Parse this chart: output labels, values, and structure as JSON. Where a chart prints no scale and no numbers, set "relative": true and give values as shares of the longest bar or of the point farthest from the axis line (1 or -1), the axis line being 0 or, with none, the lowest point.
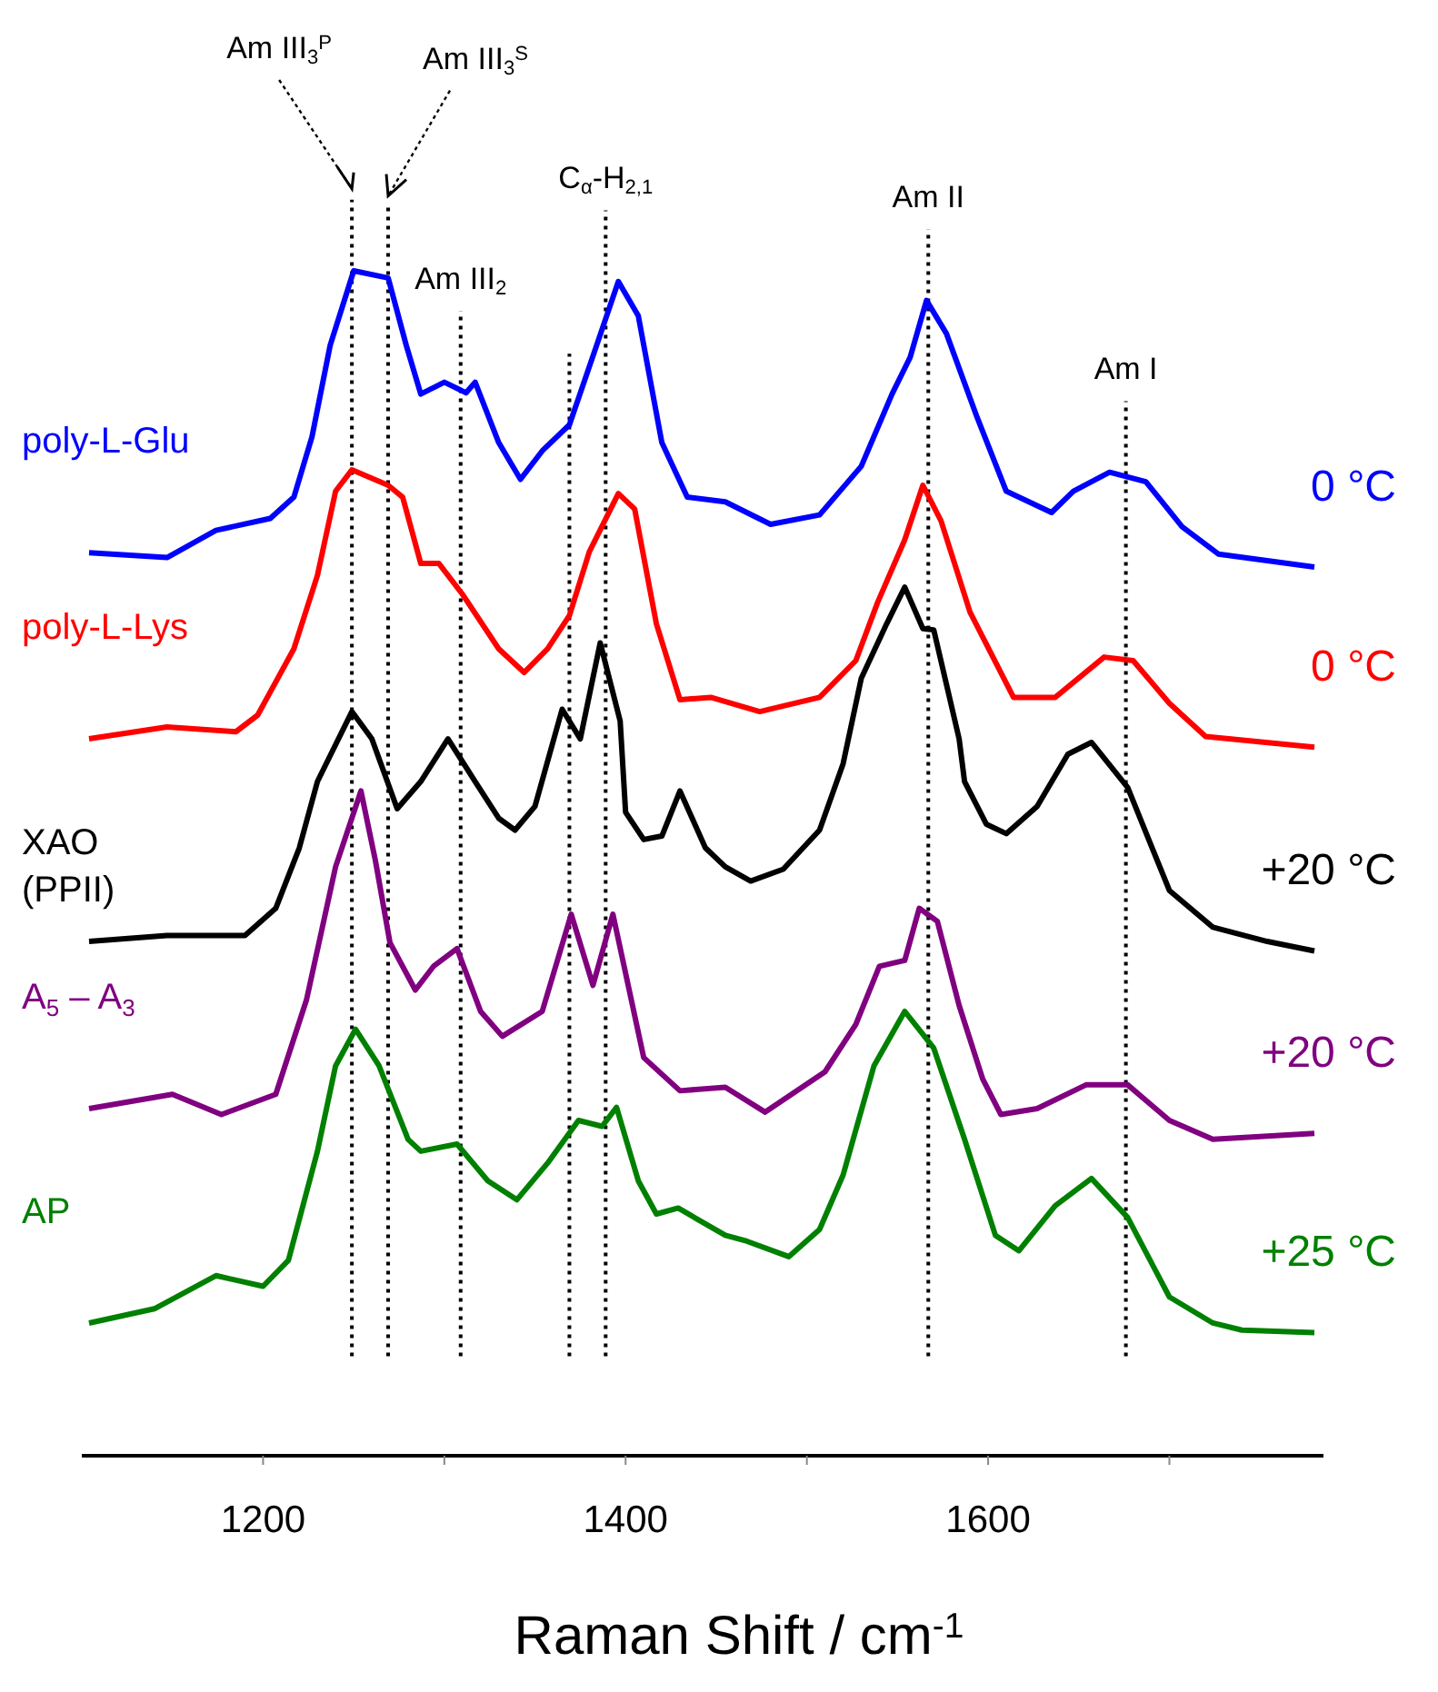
{
  "chart_data": {
    "type": "line",
    "relative": true,
    "xlabel": "Raman Shift / cm$^{-1}$",
    "xlim": [
      1100,
      1785
    ],
    "xticks": [
      1200,
      {
        "value": 1300,
        "label": null
      },
      1400,
      {
        "value": 1500,
        "label": null
      },
      1600,
      {
        "value": 1700,
        "label": null
      }
    ],
    "marker": "none",
    "line_style": "solid",
    "tick_labels": "x",
    "series": [
      {
        "name": "poly-L-Glu",
        "color": "#0000ff",
        "x": [
          1104,
          1147,
          1174,
          1204,
          1217,
          1227,
          1237,
          1250,
          1269,
          1279,
          1287,
          1300,
          1312,
          1317,
          1330,
          1342,
          1354,
          1369,
          1384,
          1396,
          1407,
          1420,
          1434,
          1455,
          1480,
          1507,
          1530,
          1547,
          1557,
          1566,
          1577,
          1594,
          1610,
          1635,
          1647,
          1667,
          1687,
          1707,
          1727,
          1780
        ],
        "values": [
          0.762,
          0.758,
          0.781,
          0.791,
          0.809,
          0.86,
          0.937,
          1,
          0.994,
          0.937,
          0.896,
          0.906,
          0.897,
          0.906,
          0.855,
          0.824,
          0.848,
          0.87,
          0.937,
          0.991,
          0.962,
          0.855,
          0.809,
          0.805,
          0.786,
          0.794,
          0.835,
          0.896,
          0.927,
          0.975,
          0.947,
          0.876,
          0.814,
          0.796,
          0.814,
          0.83,
          0.822,
          0.784,
          0.761,
          0.75
        ]
      },
      {
        "name": "poly-L-Lys",
        "color": "#ff0000",
        "x": [
          1104,
          1147,
          1185,
          1197,
          1217,
          1230,
          1240,
          1249,
          1269,
          1277,
          1287,
          1297,
          1310,
          1330,
          1344,
          1357,
          1369,
          1380,
          1396,
          1405,
          1417,
          1430,
          1447,
          1474,
          1507,
          1527,
          1539,
          1554,
          1564,
          1574,
          1590,
          1614,
          1637,
          1664,
          1680,
          1700,
          1720,
          1780
        ],
        "values": [
          0.605,
          0.615,
          0.611,
          0.625,
          0.681,
          0.743,
          0.814,
          0.832,
          0.819,
          0.809,
          0.753,
          0.753,
          0.727,
          0.681,
          0.661,
          0.681,
          0.709,
          0.763,
          0.812,
          0.799,
          0.702,
          0.638,
          0.64,
          0.628,
          0.64,
          0.671,
          0.72,
          0.773,
          0.819,
          0.789,
          0.712,
          0.64,
          0.64,
          0.674,
          0.671,
          0.635,
          0.607,
          0.598
        ]
      },
      {
        "name": "XAO (PPII)",
        "color": "#000000",
        "x": [
          1104,
          1147,
          1190,
          1207,
          1220,
          1230,
          1249,
          1260,
          1274,
          1287,
          1302,
          1317,
          1330,
          1339,
          1350,
          1365,
          1375,
          1386,
          1397,
          1400,
          1410,
          1420,
          1430,
          1444,
          1455,
          1469,
          1487,
          1507,
          1520,
          1530,
          1544,
          1554,
          1564,
          1570,
          1584,
          1587,
          1599,
          1610,
          1627,
          1644,
          1657,
          1677,
          1700,
          1724,
          1754,
          1780
        ],
        "values": [
          0.434,
          0.439,
          0.439,
          0.462,
          0.513,
          0.569,
          0.628,
          0.605,
          0.546,
          0.569,
          0.605,
          0.569,
          0.538,
          0.528,
          0.548,
          0.63,
          0.605,
          0.686,
          0.62,
          0.543,
          0.52,
          0.523,
          0.561,
          0.513,
          0.497,
          0.485,
          0.495,
          0.528,
          0.584,
          0.656,
          0.702,
          0.733,
          0.698,
          0.697,
          0.605,
          0.569,
          0.533,
          0.525,
          0.548,
          0.592,
          0.602,
          0.564,
          0.477,
          0.446,
          0.434,
          0.426
        ]
      },
      {
        "name": "A$_{5}$ – A$_{3}$",
        "color": "#800080",
        "x": [
          1104,
          1150,
          1177,
          1207,
          1224,
          1240,
          1254,
          1262,
          1270,
          1284,
          1294,
          1307,
          1320,
          1332,
          1354,
          1370,
          1382,
          1393,
          1410,
          1430,
          1455,
          1477,
          1510,
          1527,
          1540,
          1554,
          1562,
          1572,
          1584,
          1597,
          1607,
          1627,
          1654,
          1677,
          1700,
          1724,
          1780
        ],
        "values": [
          0.293,
          0.305,
          0.288,
          0.305,
          0.385,
          0.497,
          0.561,
          0.502,
          0.433,
          0.393,
          0.413,
          0.428,
          0.375,
          0.354,
          0.375,
          0.457,
          0.397,
          0.457,
          0.336,
          0.308,
          0.311,
          0.29,
          0.324,
          0.364,
          0.413,
          0.418,
          0.462,
          0.451,
          0.38,
          0.318,
          0.288,
          0.293,
          0.313,
          0.313,
          0.283,
          0.267,
          0.272
        ]
      },
      {
        "name": "AP",
        "color": "#008000",
        "x": [
          1104,
          1140,
          1174,
          1200,
          1214,
          1230,
          1240,
          1251,
          1264,
          1280,
          1287,
          1307,
          1324,
          1340,
          1357,
          1374,
          1387,
          1395,
          1407,
          1417,
          1429,
          1455,
          1467,
          1490,
          1507,
          1520,
          1537,
          1554,
          1570,
          1587,
          1604,
          1617,
          1637,
          1657,
          1677,
          1700,
          1724,
          1740,
          1780
        ],
        "values": [
          0.112,
          0.124,
          0.152,
          0.143,
          0.165,
          0.257,
          0.329,
          0.36,
          0.329,
          0.267,
          0.257,
          0.263,
          0.232,
          0.216,
          0.247,
          0.283,
          0.278,
          0.294,
          0.232,
          0.204,
          0.209,
          0.186,
          0.181,
          0.168,
          0.191,
          0.237,
          0.329,
          0.375,
          0.344,
          0.267,
          0.186,
          0.173,
          0.211,
          0.234,
          0.201,
          0.134,
          0.112,
          0.106,
          0.104
        ]
      }
    ],
    "annotations": [
      "0 °C",
      "0 °C",
      "+20 °C",
      "+20 °C",
      "+25 °C"
    ],
    "ref_lines": [
      {
        "axis": "x",
        "value": 1249,
        "label": "Am III$_{3}$$^{P}$",
        "color": "#000000",
        "line_style": "dotted"
      },
      {
        "axis": "x",
        "value": 1269,
        "label": "Am III$_{3}$$^{S}$",
        "color": "#000000",
        "line_style": "dotted"
      },
      {
        "axis": "x",
        "value": 1309,
        "label": "Am III$_{2}$",
        "color": "#000000",
        "line_style": "dotted"
      },
      {
        "axis": "x",
        "value": 1369,
        "label": null,
        "color": "#000000",
        "line_style": "dotted"
      },
      {
        "axis": "x",
        "value": 1389,
        "label": "C$_{α}$-H$_{2,1}$",
        "color": "#000000",
        "line_style": "dotted"
      },
      {
        "axis": "x",
        "value": 1567,
        "label": "Am II",
        "color": "#000000",
        "line_style": "dotted"
      },
      {
        "axis": "x",
        "value": 1676,
        "label": "Am I",
        "color": "#000000",
        "line_style": "dotted"
      }
    ]
  }
}
